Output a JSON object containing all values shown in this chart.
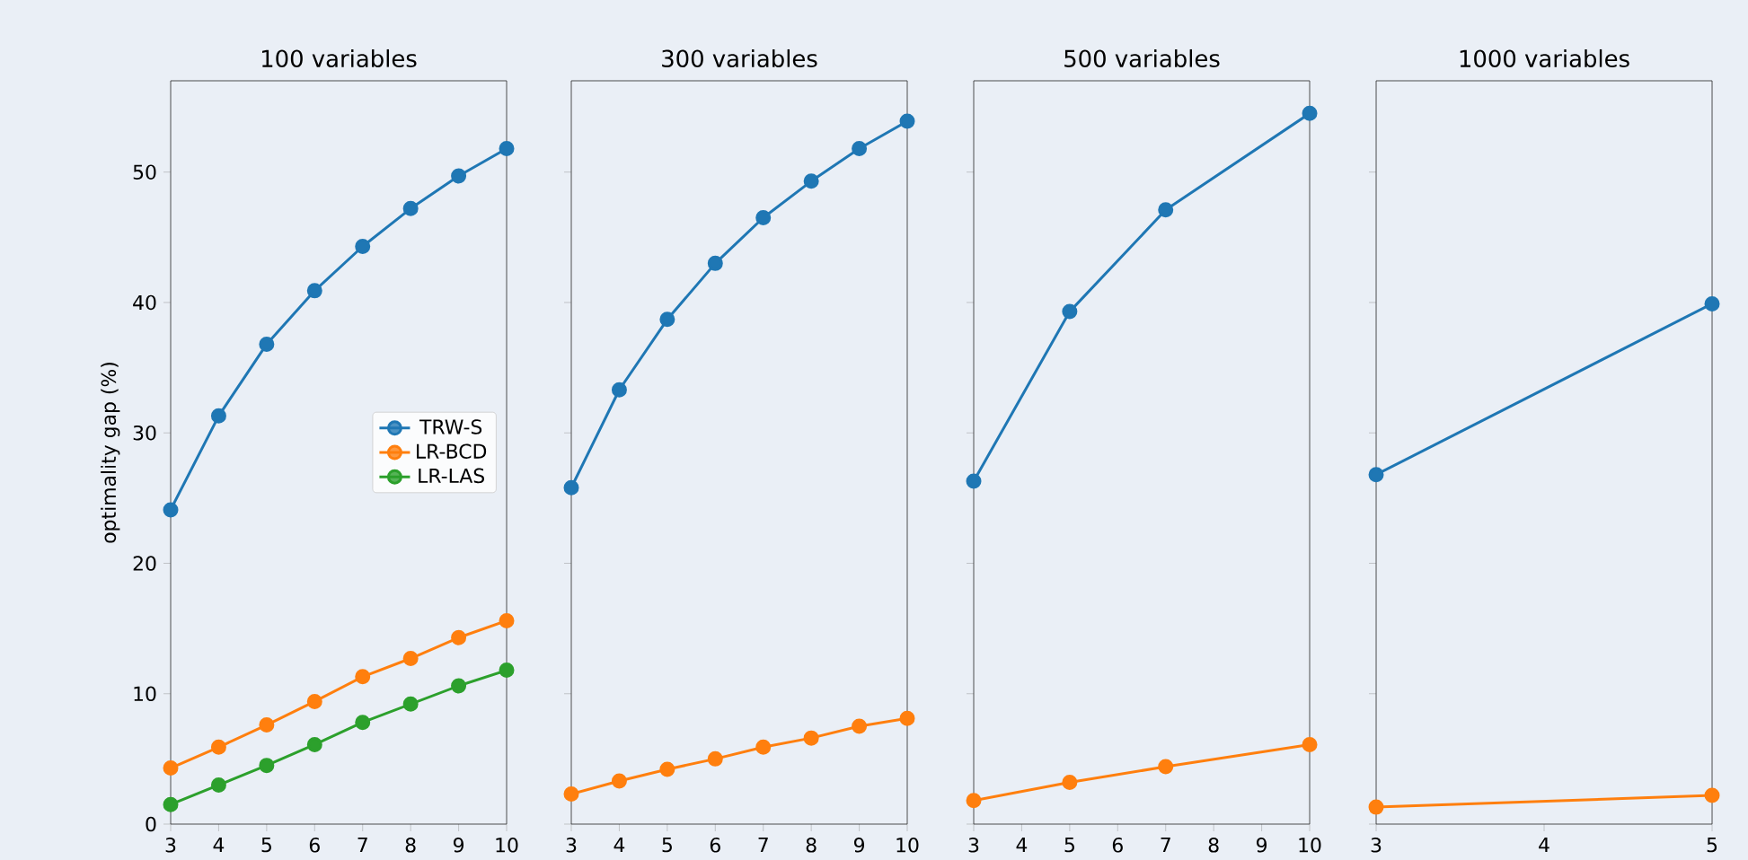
{
  "chart_data": [
    {
      "type": "line",
      "title": "100 variables",
      "ylabel": "optimality gap (%)",
      "x": [
        3,
        4,
        5,
        6,
        7,
        8,
        9,
        10
      ],
      "xlim": [
        3,
        10
      ],
      "xticks": [
        3,
        4,
        5,
        6,
        7,
        8,
        9,
        10
      ],
      "ylim": [
        0,
        57
      ],
      "yticks": [
        0,
        10,
        20,
        30,
        40,
        50
      ],
      "marker": "circle",
      "legend": "center right",
      "series": [
        {
          "name": "TRW-S",
          "color": "#1f77b4",
          "values": [
            24.1,
            31.3,
            36.8,
            40.9,
            44.3,
            47.2,
            49.7,
            51.8
          ]
        },
        {
          "name": "LR-BCD",
          "color": "#ff7f0e",
          "values": [
            4.3,
            5.9,
            7.6,
            9.4,
            11.3,
            12.7,
            14.3,
            15.6
          ]
        },
        {
          "name": "LR-LAS",
          "color": "#2ca02c",
          "values": [
            1.5,
            3.0,
            4.5,
            6.1,
            7.8,
            9.2,
            10.6,
            11.8
          ]
        }
      ]
    },
    {
      "type": "line",
      "title": "300 variables",
      "x": [
        3,
        4,
        5,
        6,
        7,
        8,
        9,
        10
      ],
      "xlim": [
        3,
        10
      ],
      "xticks": [
        3,
        4,
        5,
        6,
        7,
        8,
        9,
        10
      ],
      "ylim": [
        0,
        57
      ],
      "yticks": [
        0,
        10,
        20,
        30,
        40,
        50
      ],
      "marker": "circle",
      "tick_labels": "x",
      "series": [
        {
          "color": "#1f77b4",
          "values": [
            25.8,
            33.3,
            38.7,
            43.0,
            46.5,
            49.3,
            51.8,
            53.9
          ]
        },
        {
          "color": "#ff7f0e",
          "values": [
            2.3,
            3.3,
            4.2,
            5.0,
            5.9,
            6.6,
            7.5,
            8.1
          ]
        }
      ]
    },
    {
      "type": "line",
      "title": "500 variables",
      "x": [
        3,
        5,
        7,
        10
      ],
      "xlim": [
        3,
        10
      ],
      "xticks": [
        3,
        4,
        5,
        6,
        7,
        8,
        9,
        10
      ],
      "ylim": [
        0,
        57
      ],
      "yticks": [
        0,
        10,
        20,
        30,
        40,
        50
      ],
      "marker": "circle",
      "tick_labels": "x",
      "series": [
        {
          "color": "#1f77b4",
          "values": [
            26.3,
            39.3,
            47.1,
            54.5
          ]
        },
        {
          "color": "#ff7f0e",
          "values": [
            1.8,
            3.2,
            4.4,
            6.1
          ]
        }
      ]
    },
    {
      "type": "line",
      "title": "1000 variables",
      "x": [
        3,
        5
      ],
      "xlim": [
        3,
        5
      ],
      "xticks": [
        3,
        4,
        5
      ],
      "ylim": [
        0,
        57
      ],
      "yticks": [
        0,
        10,
        20,
        30,
        40,
        50
      ],
      "marker": "circle",
      "tick_labels": "x",
      "series": [
        {
          "color": "#1f77b4",
          "values": [
            26.8,
            39.9
          ]
        },
        {
          "color": "#ff7f0e",
          "values": [
            1.3,
            2.2
          ]
        }
      ]
    }
  ]
}
